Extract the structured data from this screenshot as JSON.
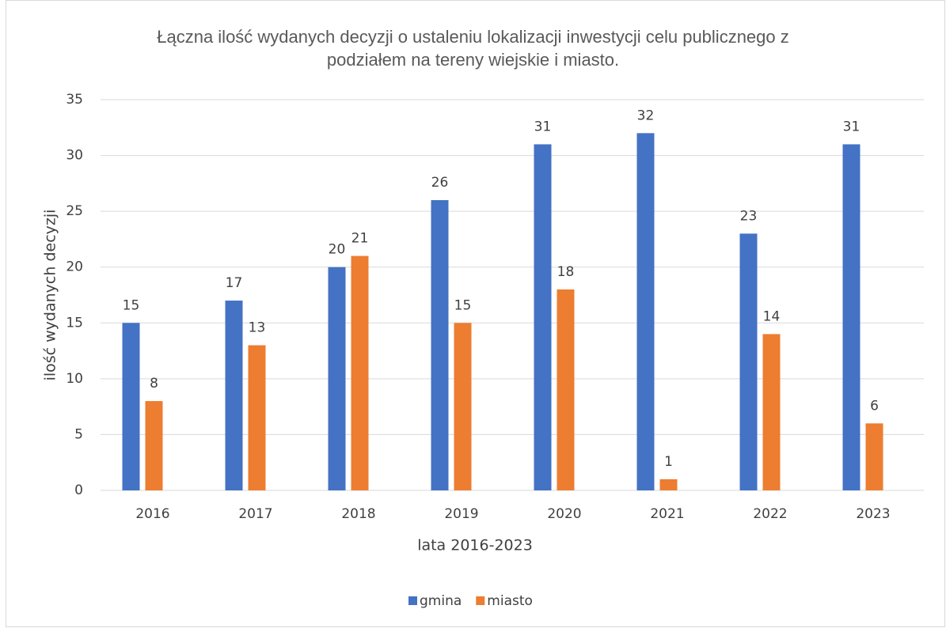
{
  "chart_data": {
    "type": "bar",
    "title": "Łączna ilość wydanych decyzji o ustaleniu lokalizacji inwestycji celu publicznego z podziałem na tereny wiejskie i miasto.",
    "xlabel": "lata 2016-2023",
    "ylabel": "ilość wydanych decyzji",
    "categories": [
      "2016",
      "2017",
      "2018",
      "2019",
      "2020",
      "2021",
      "2022",
      "2023"
    ],
    "series": [
      {
        "name": "gmina",
        "color": "#4472c4",
        "values": [
          15,
          17,
          20,
          26,
          31,
          32,
          23,
          31
        ]
      },
      {
        "name": "miasto",
        "color": "#ed7d31",
        "values": [
          8,
          13,
          21,
          15,
          18,
          1,
          14,
          6
        ]
      }
    ],
    "ylim": [
      0,
      35
    ],
    "yticks": [
      0,
      5,
      10,
      15,
      20,
      25,
      30,
      35
    ],
    "grid": true,
    "legend": "bottom"
  }
}
